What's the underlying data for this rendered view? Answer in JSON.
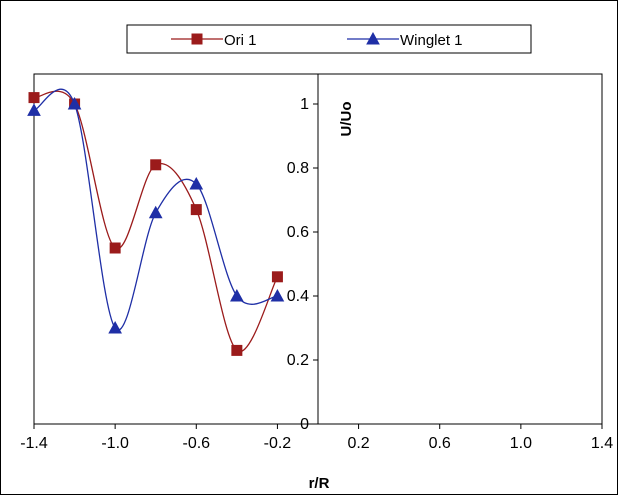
{
  "chart_data": {
    "type": "line",
    "title": "",
    "xlabel": "r/R",
    "ylabel": "U/Uo",
    "xlim": [
      -1.4,
      1.4
    ],
    "ylim": [
      0,
      1.1
    ],
    "x_ticks": [
      "-1.4",
      "-1.0",
      "-0.6",
      "-0.2",
      "0.2",
      "0.6",
      "1.0",
      "1.4"
    ],
    "x_tick_values": [
      -1.4,
      -1.0,
      -0.6,
      -0.2,
      0.2,
      0.6,
      1.0,
      1.4
    ],
    "y_ticks": [
      "0",
      "0.2",
      "0.4",
      "0.6",
      "0.8",
      "1"
    ],
    "y_tick_values": [
      0,
      0.2,
      0.4,
      0.6,
      0.8,
      1.0
    ],
    "grid": false,
    "legend_position": "top",
    "smoothed": true,
    "series": [
      {
        "name": "Ori 1",
        "color": "#9B1B1B",
        "marker": "square",
        "x": [
          -1.4,
          -1.2,
          -1.0,
          -0.8,
          -0.6,
          -0.4,
          -0.2
        ],
        "y": [
          1.02,
          1.0,
          0.55,
          0.81,
          0.67,
          0.23,
          0.46
        ]
      },
      {
        "name": "Winglet 1",
        "color": "#1F2FA6",
        "marker": "triangle",
        "x": [
          -1.4,
          -1.2,
          -1.0,
          -0.8,
          -0.6,
          -0.4,
          -0.2
        ],
        "y": [
          0.98,
          1.0,
          0.3,
          0.66,
          0.75,
          0.4,
          0.4
        ]
      }
    ]
  }
}
